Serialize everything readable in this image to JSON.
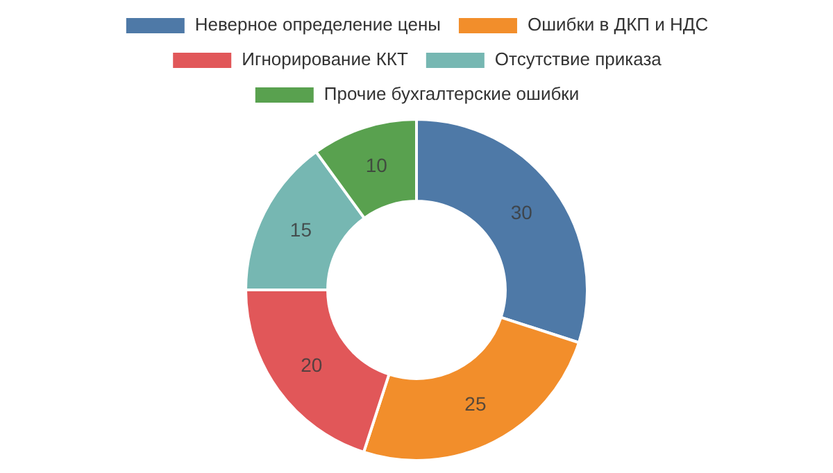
{
  "chart_data": {
    "type": "donut",
    "categories": [
      "Неверное определение цены",
      "Ошибки в ДКП и НДС",
      "Игнорирование ККТ",
      "Отсутствие приказа",
      "Прочие бухгалтерские ошибки"
    ],
    "values": [
      30,
      25,
      20,
      15,
      10
    ],
    "colors": [
      "#4e79a7",
      "#f28e2b",
      "#e15759",
      "#76b7b2",
      "#59a14f"
    ],
    "data_labels": true,
    "legend": "top"
  }
}
